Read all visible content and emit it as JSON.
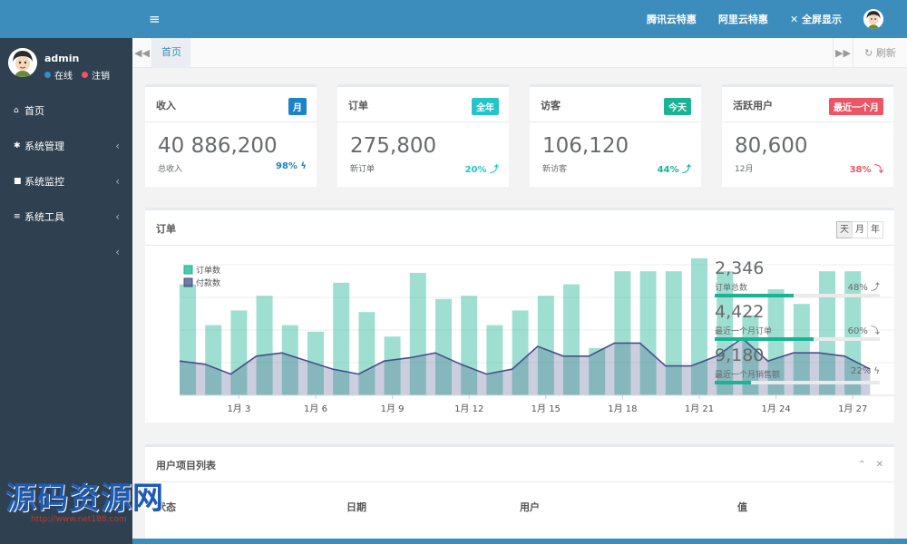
{
  "sidebar": {
    "username": "admin",
    "online_label": "在线",
    "logout_label": "注销",
    "items": [
      {
        "icon": "home-icon",
        "glyph": "⌂",
        "label": "首页",
        "chevron": ""
      },
      {
        "icon": "gear-icon",
        "glyph": "✱",
        "label": "系统管理",
        "chevron": "‹"
      },
      {
        "icon": "video-camera-icon",
        "glyph": "■",
        "label": "系统监控",
        "chevron": "‹"
      },
      {
        "icon": "bars-icon",
        "glyph": "≡",
        "label": "系统工具",
        "chevron": "‹"
      },
      {
        "icon": "",
        "glyph": "",
        "label": "",
        "chevron": "‹"
      }
    ]
  },
  "topbar": {
    "menu_toggle": "≡",
    "links": [
      "腾讯云特惠",
      "阿里云特惠"
    ],
    "fullscreen_label": "全屏显示",
    "fullscreen_glyph": "✕"
  },
  "tabs": {
    "prev_glyph": "◀◀",
    "next_glyph": "▶▶",
    "active": "首页",
    "refresh_label": "↻ 刷新"
  },
  "cards": [
    {
      "title": "收入",
      "badge": "月",
      "badge_color": "#1c84c6",
      "value": "40 886,200",
      "sub": "总收入",
      "pct": "98% ϟ",
      "pct_color": "#1c84c6"
    },
    {
      "title": "订单",
      "badge": "全年",
      "badge_color": "#23c6c8",
      "value": "275,800",
      "sub": "新订单",
      "pct": "20% ⤴",
      "pct_color": "#23c6c8"
    },
    {
      "title": "访客",
      "badge": "今天",
      "badge_color": "#1ab394",
      "value": "106,120",
      "sub": "新访客",
      "pct": "44% ⤴",
      "pct_color": "#1ab394"
    },
    {
      "title": "活跃用户",
      "badge": "最近一个月",
      "badge_color": "#ed5565",
      "value": "80,600",
      "sub": "12月",
      "pct": "38% ⤵",
      "pct_color": "#ed5565"
    }
  ],
  "chart_panel": {
    "title": "订单",
    "ranges": [
      "天",
      "月",
      "年"
    ],
    "active_range": "天"
  },
  "chart_data": {
    "type": "bar",
    "series": [
      {
        "name": "订单数",
        "type": "bar",
        "color": "#1ab394",
        "values": [
          6.8,
          4.3,
          5.2,
          6.1,
          4.3,
          3.9,
          6.9,
          5.1,
          3.6,
          7.5,
          5.9,
          6.1,
          4.3,
          5.2,
          6.1,
          6.8,
          2.9,
          7.6,
          7.6,
          7.6,
          8.4,
          7.6,
          4.9,
          6.5,
          5.6,
          7.6,
          7.6
        ]
      },
      {
        "name": "付款数",
        "type": "area",
        "color": "#464f88",
        "values": [
          2.1,
          1.9,
          1.3,
          2.4,
          2.6,
          2.1,
          1.6,
          1.3,
          2.1,
          2.3,
          2.6,
          1.9,
          1.3,
          1.6,
          3.0,
          2.4,
          2.4,
          3.2,
          3.2,
          1.8,
          1.8,
          2.4,
          3.5,
          2.1,
          2.6,
          2.6,
          2.4,
          1.6
        ]
      }
    ],
    "x_tick_labels": [
      "1月 3",
      "1月 6",
      "1月 9",
      "1月 12",
      "1月 15",
      "1月 18",
      "1月 21",
      "1月 24",
      "1月 27"
    ],
    "x_ticks_at_index": [
      2,
      5,
      8,
      11,
      14,
      17,
      20,
      23,
      26
    ],
    "ylim": [
      0,
      10
    ],
    "grid": true,
    "legend": "top-left"
  },
  "stats": [
    {
      "value": "2,346",
      "label": "订单总数",
      "pct_text": "48% ⤴",
      "fill": 0.48
    },
    {
      "value": "4,422",
      "label": "最近一个月订单",
      "pct_text": "60% ⤵",
      "fill": 0.6
    },
    {
      "value": "9,180",
      "label": "最近一个月销售额",
      "pct_text": "22% ϟ",
      "fill": 0.22
    }
  ],
  "table_panel": {
    "title": "用户项目列表",
    "collapse_glyph": "⌃",
    "close_glyph": "✕",
    "columns": [
      "状态",
      "日期",
      "用户",
      "值"
    ]
  },
  "watermark": {
    "text": "源码资源网",
    "url": "http://www.net188.com"
  }
}
